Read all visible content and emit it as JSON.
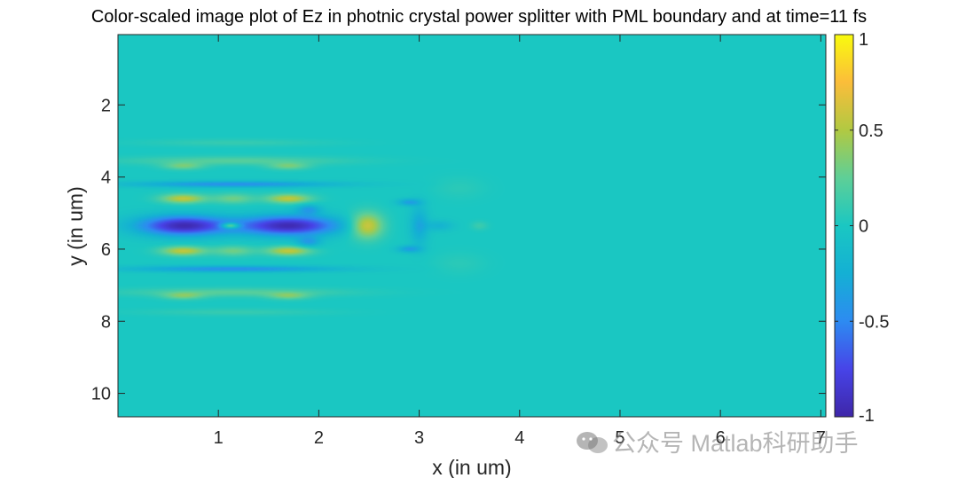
{
  "chart_data": {
    "type": "heatmap",
    "title": "Color-scaled image plot of Ez in photnic crystal power splitter with PML boundary and at time=11 fs",
    "xlabel": "x (in um)",
    "ylabel": "y (in um)",
    "xlim": [
      0.0,
      7.05
    ],
    "ylim": [
      10.65,
      0.05
    ],
    "y_axis_reversed": true,
    "x_ticks": [
      "1",
      "2",
      "3",
      "4",
      "5",
      "6",
      "7"
    ],
    "y_ticks": [
      "2",
      "4",
      "6",
      "8",
      "10"
    ],
    "colormap": "parula",
    "colorbar": {
      "range": [
        -1,
        1
      ],
      "ticks": [
        "1",
        "0.5",
        "0",
        "-0.5",
        "-1"
      ]
    },
    "background_value": 0.0,
    "field_features": [
      {
        "x": 0.65,
        "y": 5.35,
        "w": 0.45,
        "h": 0.28,
        "value": -0.95
      },
      {
        "x": 1.7,
        "y": 5.35,
        "w": 0.5,
        "h": 0.28,
        "value": -0.95
      },
      {
        "x": 1.12,
        "y": 5.35,
        "w": 0.09,
        "h": 0.08,
        "value": 0.75
      },
      {
        "x": 2.48,
        "y": 5.35,
        "w": 0.16,
        "h": 0.35,
        "value": 0.65
      },
      {
        "x": 0.65,
        "y": 4.6,
        "w": 0.22,
        "h": 0.13,
        "value": 0.55
      },
      {
        "x": 1.7,
        "y": 4.6,
        "w": 0.22,
        "h": 0.13,
        "value": 0.55
      },
      {
        "x": 0.65,
        "y": 6.05,
        "w": 0.22,
        "h": 0.13,
        "value": 0.55
      },
      {
        "x": 1.7,
        "y": 6.05,
        "w": 0.22,
        "h": 0.13,
        "value": 0.55
      },
      {
        "x": 1.15,
        "y": 4.6,
        "w": 0.2,
        "h": 0.14,
        "value": 0.3
      },
      {
        "x": 1.15,
        "y": 6.05,
        "w": 0.2,
        "h": 0.14,
        "value": 0.3
      },
      {
        "x": 1.15,
        "y": 4.2,
        "w": 1.0,
        "h": 0.09,
        "value": -0.45
      },
      {
        "x": 1.15,
        "y": 6.55,
        "w": 1.0,
        "h": 0.09,
        "value": -0.45
      },
      {
        "x": 1.15,
        "y": 3.55,
        "w": 1.05,
        "h": 0.12,
        "value": 0.22
      },
      {
        "x": 1.15,
        "y": 7.2,
        "w": 1.05,
        "h": 0.12,
        "value": 0.22
      },
      {
        "x": 0.65,
        "y": 3.7,
        "w": 0.2,
        "h": 0.1,
        "value": 0.3
      },
      {
        "x": 1.7,
        "y": 3.7,
        "w": 0.2,
        "h": 0.1,
        "value": 0.3
      },
      {
        "x": 0.65,
        "y": 7.3,
        "w": 0.2,
        "h": 0.1,
        "value": 0.3
      },
      {
        "x": 1.7,
        "y": 7.3,
        "w": 0.2,
        "h": 0.1,
        "value": 0.3
      },
      {
        "x": 1.15,
        "y": 3.05,
        "w": 0.9,
        "h": 0.1,
        "value": 0.1
      },
      {
        "x": 1.15,
        "y": 7.75,
        "w": 0.9,
        "h": 0.1,
        "value": 0.1
      },
      {
        "x": 3.0,
        "y": 5.35,
        "w": 0.09,
        "h": 0.55,
        "value": -0.3
      },
      {
        "x": 2.9,
        "y": 4.7,
        "w": 0.12,
        "h": 0.1,
        "value": -0.35
      },
      {
        "x": 2.9,
        "y": 6.0,
        "w": 0.12,
        "h": 0.1,
        "value": -0.35
      },
      {
        "x": 3.2,
        "y": 5.35,
        "w": 0.14,
        "h": 0.15,
        "value": -0.2
      },
      {
        "x": 3.6,
        "y": 5.35,
        "w": 0.08,
        "h": 0.12,
        "value": 0.12
      },
      {
        "x": 3.4,
        "y": 4.3,
        "w": 0.25,
        "h": 0.3,
        "value": 0.06
      },
      {
        "x": 3.4,
        "y": 6.4,
        "w": 0.25,
        "h": 0.3,
        "value": 0.06
      },
      {
        "x": 1.9,
        "y": 4.9,
        "w": 0.12,
        "h": 0.14,
        "value": -0.35
      },
      {
        "x": 1.9,
        "y": 5.8,
        "w": 0.12,
        "h": 0.14,
        "value": -0.35
      }
    ]
  },
  "watermark": {
    "text": "公众号 Matlab科研助手",
    "icon": "wechat-icon"
  }
}
